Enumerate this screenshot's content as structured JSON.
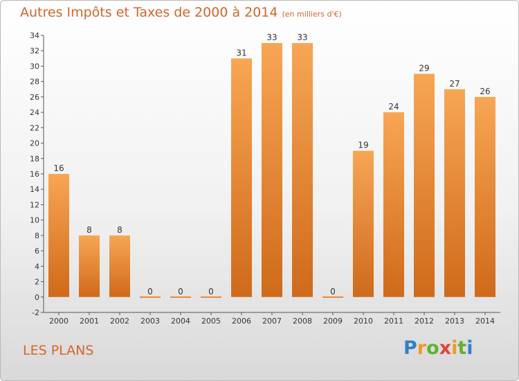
{
  "header": {
    "title": "Autres Impôts et Taxes de 2000 à 2014",
    "subtitle": "(en milliers d'€)"
  },
  "footer": {
    "place": "LES PLANS",
    "brand": {
      "letters": [
        "P",
        "r",
        "o",
        "x",
        "i",
        "t",
        "i"
      ],
      "colors": [
        "#2f7fd0",
        "#f29a1e",
        "#5fb233",
        "#e8413c",
        "#f29a1e",
        "#5fb233",
        "#2f7fd0"
      ]
    }
  },
  "colors": {
    "bar_top": "#f7a654",
    "bar_bottom": "#cf6a1a",
    "title": "#d4652a",
    "grid": "#bdbdbd"
  },
  "chart_data": {
    "type": "bar",
    "title": "Autres Impôts et Taxes de 2000 à 2014",
    "categories": [
      "2000",
      "2001",
      "2002",
      "2003",
      "2004",
      "2005",
      "2006",
      "2007",
      "2008",
      "2009",
      "2010",
      "2011",
      "2012",
      "2013",
      "2014"
    ],
    "values": [
      16,
      8,
      8,
      0,
      0,
      0,
      31,
      33,
      33,
      0,
      19,
      24,
      29,
      27,
      26
    ],
    "ylim": [
      -2,
      34
    ],
    "yticks": [
      -2,
      0,
      2,
      4,
      6,
      8,
      10,
      12,
      14,
      16,
      18,
      20,
      22,
      24,
      26,
      28,
      30,
      32,
      34
    ],
    "grid": false,
    "legend": "none"
  }
}
